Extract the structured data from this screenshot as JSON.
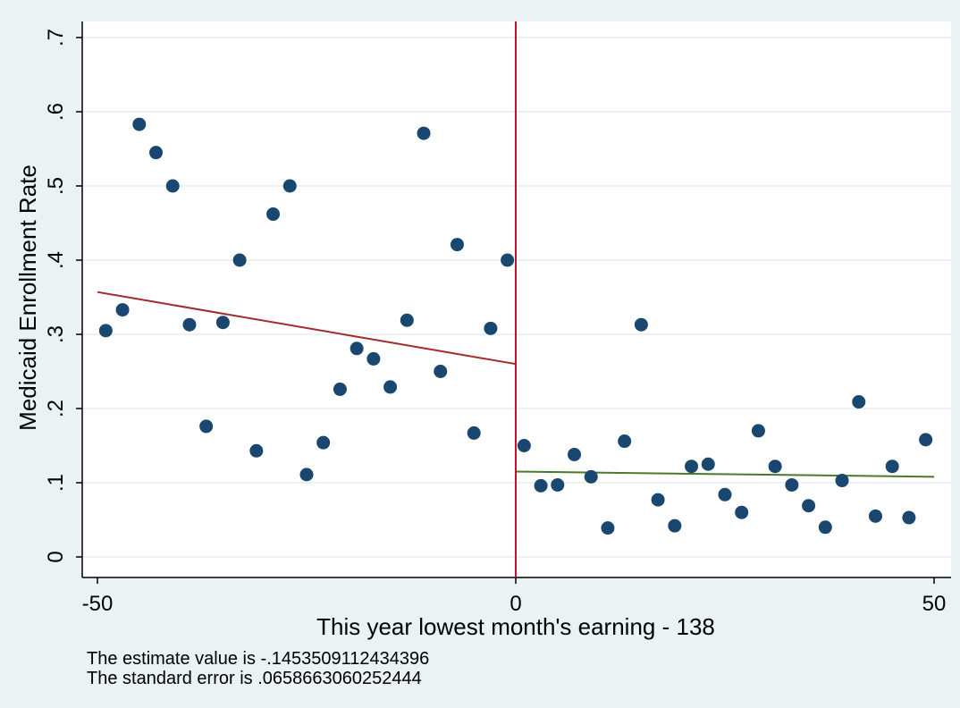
{
  "chart_data": {
    "type": "scatter",
    "xlabel": "This year lowest month's earning - 138",
    "ylabel": "Medicaid Enrollment Rate",
    "xlim": [
      -50,
      50
    ],
    "ylim": [
      0,
      0.7
    ],
    "x_ticks": [
      "-50",
      "0",
      "50"
    ],
    "y_ticks": [
      "0",
      ".1",
      ".2",
      ".3",
      ".4",
      ".5",
      ".6",
      ".7"
    ],
    "grid": true,
    "cutoff_line": {
      "x": 0,
      "color": "#c8102e"
    },
    "points": [
      [
        -49,
        0.305
      ],
      [
        -47,
        0.333
      ],
      [
        -45,
        0.583
      ],
      [
        -43,
        0.545
      ],
      [
        -41,
        0.5
      ],
      [
        -39,
        0.313
      ],
      [
        -37,
        0.176
      ],
      [
        -35,
        0.316
      ],
      [
        -33,
        0.4
      ],
      [
        -31,
        0.143
      ],
      [
        -29,
        0.462
      ],
      [
        -27,
        0.5
      ],
      [
        -25,
        0.111
      ],
      [
        -23,
        0.154
      ],
      [
        -21,
        0.226
      ],
      [
        -19,
        0.281
      ],
      [
        -17,
        0.267
      ],
      [
        -15,
        0.229
      ],
      [
        -13,
        0.319
      ],
      [
        -11,
        0.571
      ],
      [
        -9,
        0.25
      ],
      [
        -7,
        0.421
      ],
      [
        -5,
        0.167
      ],
      [
        -3,
        0.308
      ],
      [
        -1,
        0.4
      ],
      [
        1,
        0.15
      ],
      [
        3,
        0.096
      ],
      [
        5,
        0.097
      ],
      [
        7,
        0.138
      ],
      [
        9,
        0.108
      ],
      [
        11,
        0.039
      ],
      [
        13,
        0.156
      ],
      [
        15,
        0.313
      ],
      [
        17,
        0.077
      ],
      [
        19,
        0.042
      ],
      [
        21,
        0.122
      ],
      [
        23,
        0.125
      ],
      [
        25,
        0.084
      ],
      [
        27,
        0.06
      ],
      [
        29,
        0.17
      ],
      [
        31,
        0.122
      ],
      [
        33,
        0.097
      ],
      [
        35,
        0.069
      ],
      [
        37,
        0.04
      ],
      [
        39,
        0.103
      ],
      [
        41,
        0.209
      ],
      [
        43,
        0.055
      ],
      [
        45,
        0.122
      ],
      [
        47,
        0.053
      ],
      [
        49,
        0.158
      ]
    ],
    "fit_lines": [
      {
        "x": [
          -50,
          0
        ],
        "y": [
          0.357,
          0.26
        ],
        "color": "#a52a2a"
      },
      {
        "x": [
          0,
          50
        ],
        "y": [
          0.115,
          0.108
        ],
        "color": "#4a7a2a"
      }
    ],
    "marker_color": "#1a476f"
  },
  "notes": {
    "estimate": "The estimate value is -.1453509112434396",
    "std_error": "The standard error is .0658663060252444"
  }
}
